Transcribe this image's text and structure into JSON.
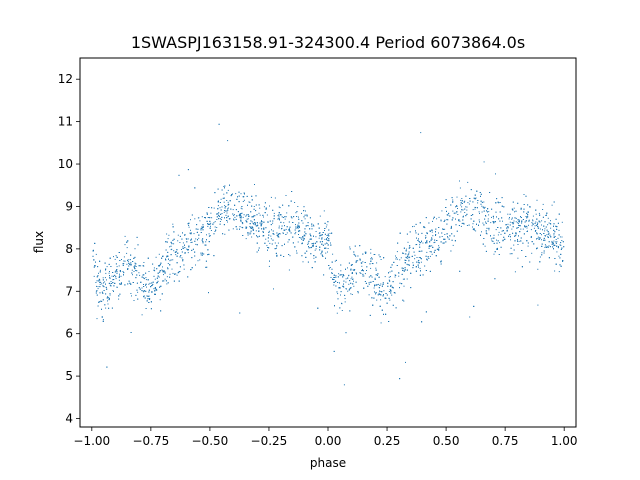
{
  "chart_data": {
    "type": "scatter",
    "title": "1SWASPJ163158.91-324300.4 Period 6073864.0s",
    "xlabel": "phase",
    "ylabel": "flux",
    "xlim": [
      -1.05,
      1.05
    ],
    "ylim": [
      3.8,
      12.5
    ],
    "xticks": [
      -1.0,
      -0.75,
      -0.5,
      -0.25,
      0.0,
      0.25,
      0.5,
      0.75,
      1.0
    ],
    "xtick_labels": [
      "−1.00",
      "−0.75",
      "−0.50",
      "−0.25",
      "0.00",
      "0.25",
      "0.50",
      "0.75",
      "1.00"
    ],
    "yticks": [
      4,
      5,
      6,
      7,
      8,
      9,
      10,
      11,
      12
    ],
    "ytick_labels": [
      "4",
      "5",
      "6",
      "7",
      "8",
      "9",
      "10",
      "11",
      "12"
    ],
    "grid": false,
    "marker_color": "#1f77b4",
    "profile": {
      "phase": [
        0.0,
        0.02,
        0.05,
        0.1,
        0.15,
        0.2,
        0.25,
        0.3,
        0.35,
        0.4,
        0.45,
        0.5,
        0.55,
        0.6,
        0.65,
        0.7,
        0.75,
        0.8,
        0.85,
        0.9,
        0.95,
        1.0
      ],
      "flux": [
        8.1,
        7.3,
        7.0,
        7.4,
        7.6,
        7.3,
        7.0,
        7.5,
        7.9,
        8.0,
        8.2,
        8.5,
        8.9,
        9.0,
        8.8,
        8.6,
        8.4,
        8.5,
        8.6,
        8.4,
        8.2,
        8.1
      ]
    },
    "scatter_sd": 0.45,
    "approx_points": 4000
  }
}
